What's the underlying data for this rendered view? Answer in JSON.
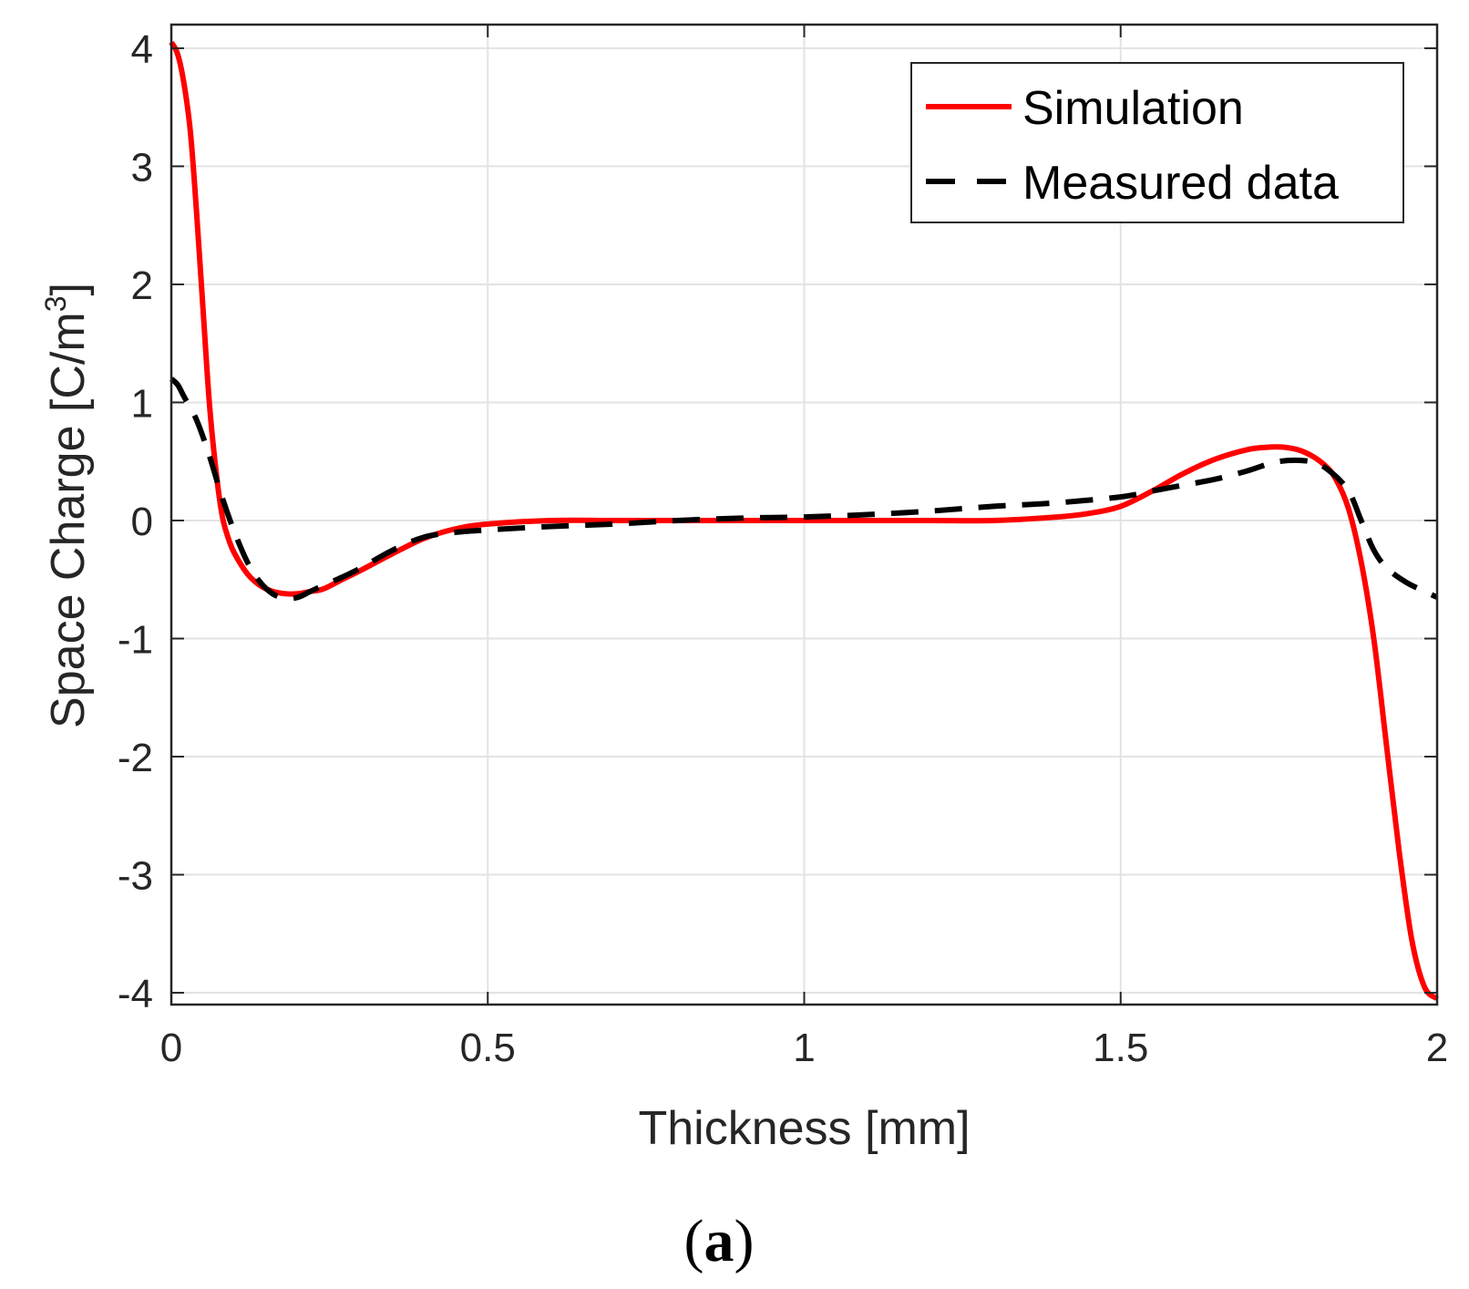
{
  "chart_data": {
    "type": "line",
    "xlabel": "Thickness [mm]",
    "ylabel": "Space Charge [C/m",
    "ylabel_superscript": "3",
    "ylabel_close": "]",
    "panel_label_open": "(",
    "panel_label": "a",
    "panel_label_close": ")",
    "xlim": [
      0,
      2
    ],
    "ylim": [
      -4.1,
      4.2
    ],
    "xticks": [
      0,
      0.5,
      1,
      1.5,
      2
    ],
    "xtick_labels": [
      "0",
      "0.5",
      "1",
      "1.5",
      "2"
    ],
    "yticks": [
      4,
      3,
      2,
      1,
      0,
      -1,
      -2,
      -3,
      -4
    ],
    "ytick_labels": [
      "4",
      "3",
      "2",
      "1",
      "0",
      "-1",
      "-2",
      "-3",
      "-4"
    ],
    "grid": true,
    "legend_position": "top-right",
    "series": [
      {
        "name": "Simulation",
        "color": "#ff0000",
        "style": "solid",
        "x": [
          0,
          0.01,
          0.02,
          0.03,
          0.04,
          0.05,
          0.06,
          0.07,
          0.08,
          0.09,
          0.1,
          0.12,
          0.14,
          0.16,
          0.18,
          0.2,
          0.22,
          0.24,
          0.27,
          0.3,
          0.35,
          0.4,
          0.45,
          0.5,
          0.6,
          0.7,
          0.8,
          0.9,
          1.0,
          1.1,
          1.2,
          1.3,
          1.4,
          1.45,
          1.5,
          1.55,
          1.6,
          1.65,
          1.7,
          1.73,
          1.76,
          1.79,
          1.82,
          1.84,
          1.86,
          1.88,
          1.9,
          1.92,
          1.94,
          1.96,
          1.98,
          2.0
        ],
        "y": [
          4.05,
          3.95,
          3.7,
          3.3,
          2.6,
          1.8,
          1.0,
          0.45,
          0.05,
          -0.15,
          -0.28,
          -0.45,
          -0.55,
          -0.6,
          -0.62,
          -0.62,
          -0.6,
          -0.58,
          -0.5,
          -0.42,
          -0.28,
          -0.15,
          -0.07,
          -0.03,
          0.0,
          0.0,
          0.0,
          0.0,
          0.0,
          0.0,
          0.0,
          0.0,
          0.03,
          0.06,
          0.12,
          0.25,
          0.4,
          0.52,
          0.6,
          0.62,
          0.62,
          0.58,
          0.48,
          0.35,
          0.1,
          -0.35,
          -1.0,
          -1.9,
          -2.8,
          -3.55,
          -3.95,
          -4.05
        ]
      },
      {
        "name": "Measured data",
        "color": "#000000",
        "style": "dashed",
        "x": [
          0,
          0.01,
          0.02,
          0.04,
          0.06,
          0.08,
          0.1,
          0.12,
          0.14,
          0.16,
          0.18,
          0.2,
          0.22,
          0.24,
          0.27,
          0.3,
          0.35,
          0.4,
          0.45,
          0.5,
          0.6,
          0.7,
          0.8,
          0.9,
          1.0,
          1.1,
          1.2,
          1.3,
          1.4,
          1.5,
          1.55,
          1.6,
          1.65,
          1.7,
          1.75,
          1.8,
          1.83,
          1.86,
          1.88,
          1.9,
          1.92,
          1.95,
          1.98,
          2.0
        ],
        "y": [
          1.2,
          1.15,
          1.05,
          0.85,
          0.55,
          0.2,
          -0.1,
          -0.35,
          -0.52,
          -0.62,
          -0.66,
          -0.65,
          -0.6,
          -0.55,
          -0.48,
          -0.4,
          -0.25,
          -0.14,
          -0.1,
          -0.08,
          -0.05,
          -0.03,
          0.0,
          0.02,
          0.03,
          0.05,
          0.08,
          0.12,
          0.15,
          0.2,
          0.25,
          0.3,
          0.35,
          0.42,
          0.5,
          0.5,
          0.42,
          0.25,
          0.0,
          -0.25,
          -0.4,
          -0.52,
          -0.6,
          -0.65
        ]
      }
    ]
  }
}
